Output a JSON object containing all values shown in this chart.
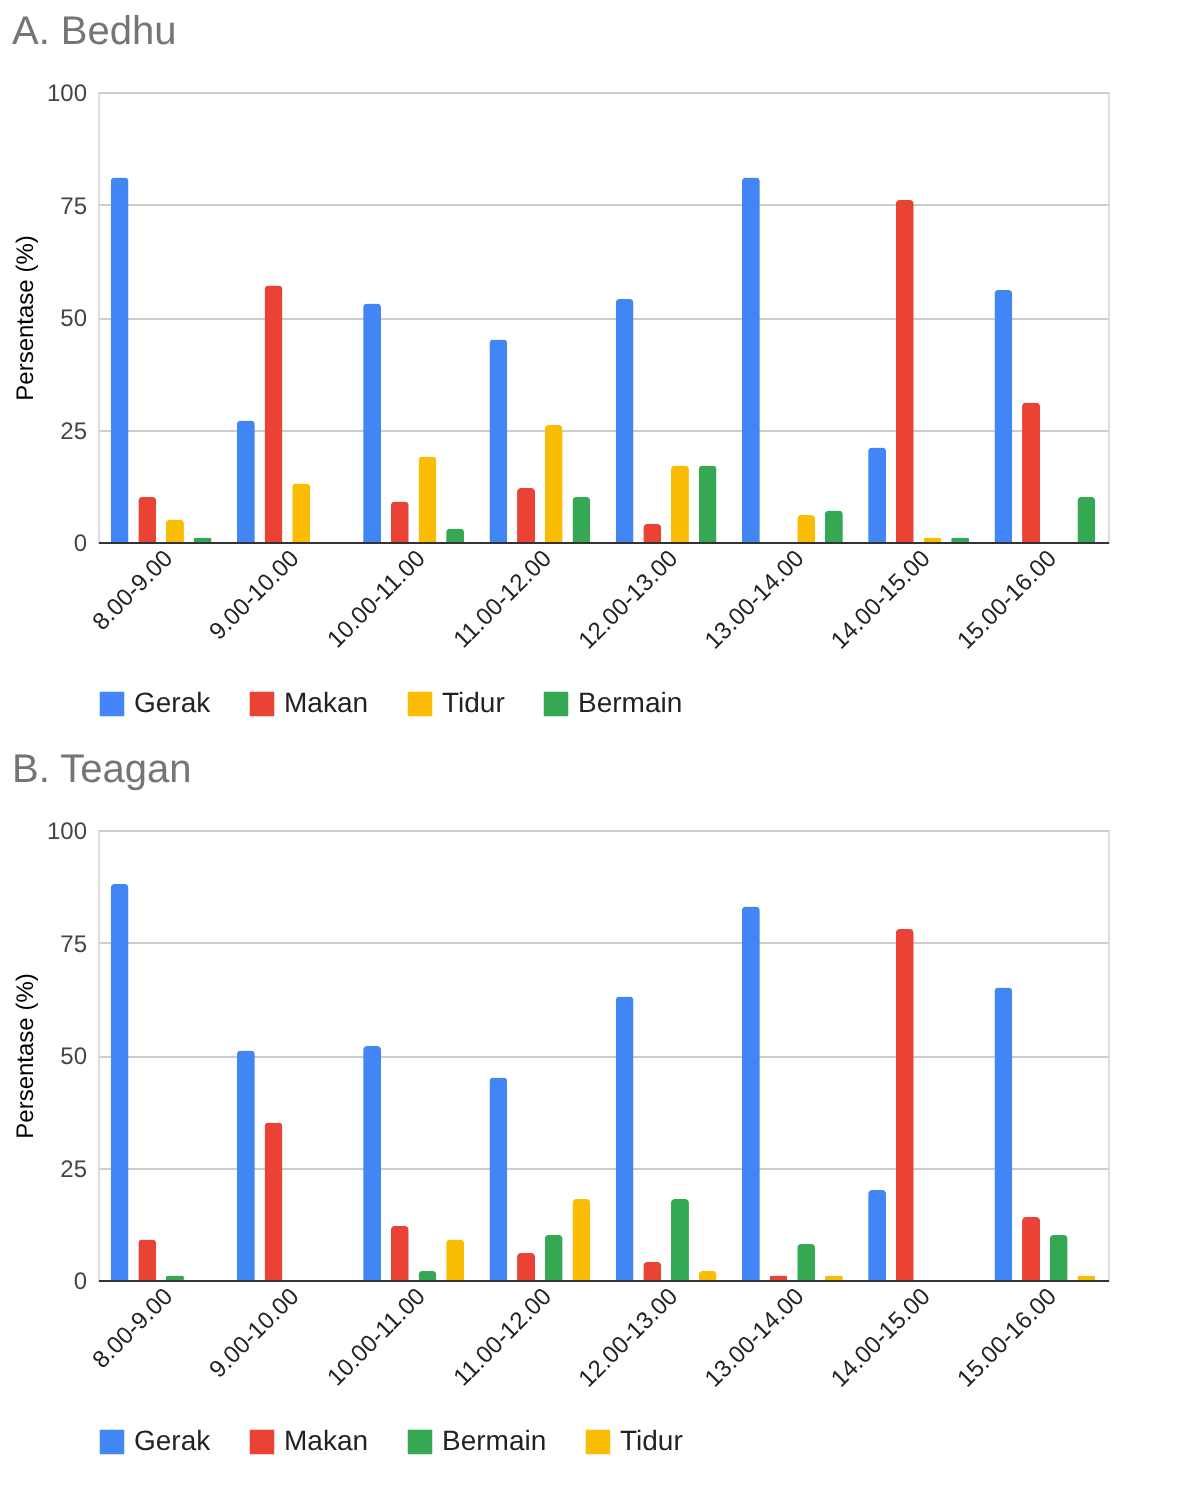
{
  "chart_data": [
    {
      "type": "bar",
      "title": "A. Bedhu",
      "ylabel": "Persentase (%)",
      "categories": [
        "8.00-9.00",
        "9.00-10.00",
        "10.00-11.00",
        "11.00-12.00",
        "12.00-13.00",
        "13.00-14.00",
        "14.00-15.00",
        "15.00-16.00"
      ],
      "ylim": [
        0,
        100
      ],
      "yticks": [
        0,
        25,
        50,
        75,
        100
      ],
      "grid": "y",
      "legend": "bottom",
      "series": [
        {
          "name": "Gerak",
          "color": "#4285f4",
          "values": [
            81,
            27,
            53,
            45,
            54,
            81,
            21,
            56
          ]
        },
        {
          "name": "Makan",
          "color": "#ea4335",
          "values": [
            10,
            57,
            9,
            12,
            4,
            0,
            76,
            31
          ]
        },
        {
          "name": "Tidur",
          "color": "#fbbc04",
          "values": [
            5,
            13,
            19,
            26,
            17,
            6,
            1,
            0
          ]
        },
        {
          "name": "Bermain",
          "color": "#34a853",
          "values": [
            1,
            0,
            3,
            10,
            17,
            7,
            1,
            10
          ]
        }
      ]
    },
    {
      "type": "bar",
      "title": "B. Teagan",
      "ylabel": "Persentase (%)",
      "categories": [
        "8.00-9.00",
        "9.00-10.00",
        "10.00-11.00",
        "11.00-12.00",
        "12.00-13.00",
        "13.00-14.00",
        "14.00-15.00",
        "15.00-16.00"
      ],
      "ylim": [
        0,
        100
      ],
      "yticks": [
        0,
        25,
        50,
        75,
        100
      ],
      "grid": "y",
      "legend": "bottom",
      "series": [
        {
          "name": "Gerak",
          "color": "#4285f4",
          "values": [
            88,
            51,
            52,
            45,
            63,
            83,
            20,
            65
          ]
        },
        {
          "name": "Makan",
          "color": "#ea4335",
          "values": [
            9,
            35,
            12,
            6,
            4,
            1,
            78,
            14
          ]
        },
        {
          "name": "Bermain",
          "color": "#34a853",
          "values": [
            1,
            0,
            2,
            10,
            18,
            8,
            0,
            10
          ]
        },
        {
          "name": "Tidur",
          "color": "#fbbc04",
          "values": [
            0,
            0,
            9,
            18,
            2,
            1,
            0,
            1
          ]
        }
      ]
    }
  ]
}
